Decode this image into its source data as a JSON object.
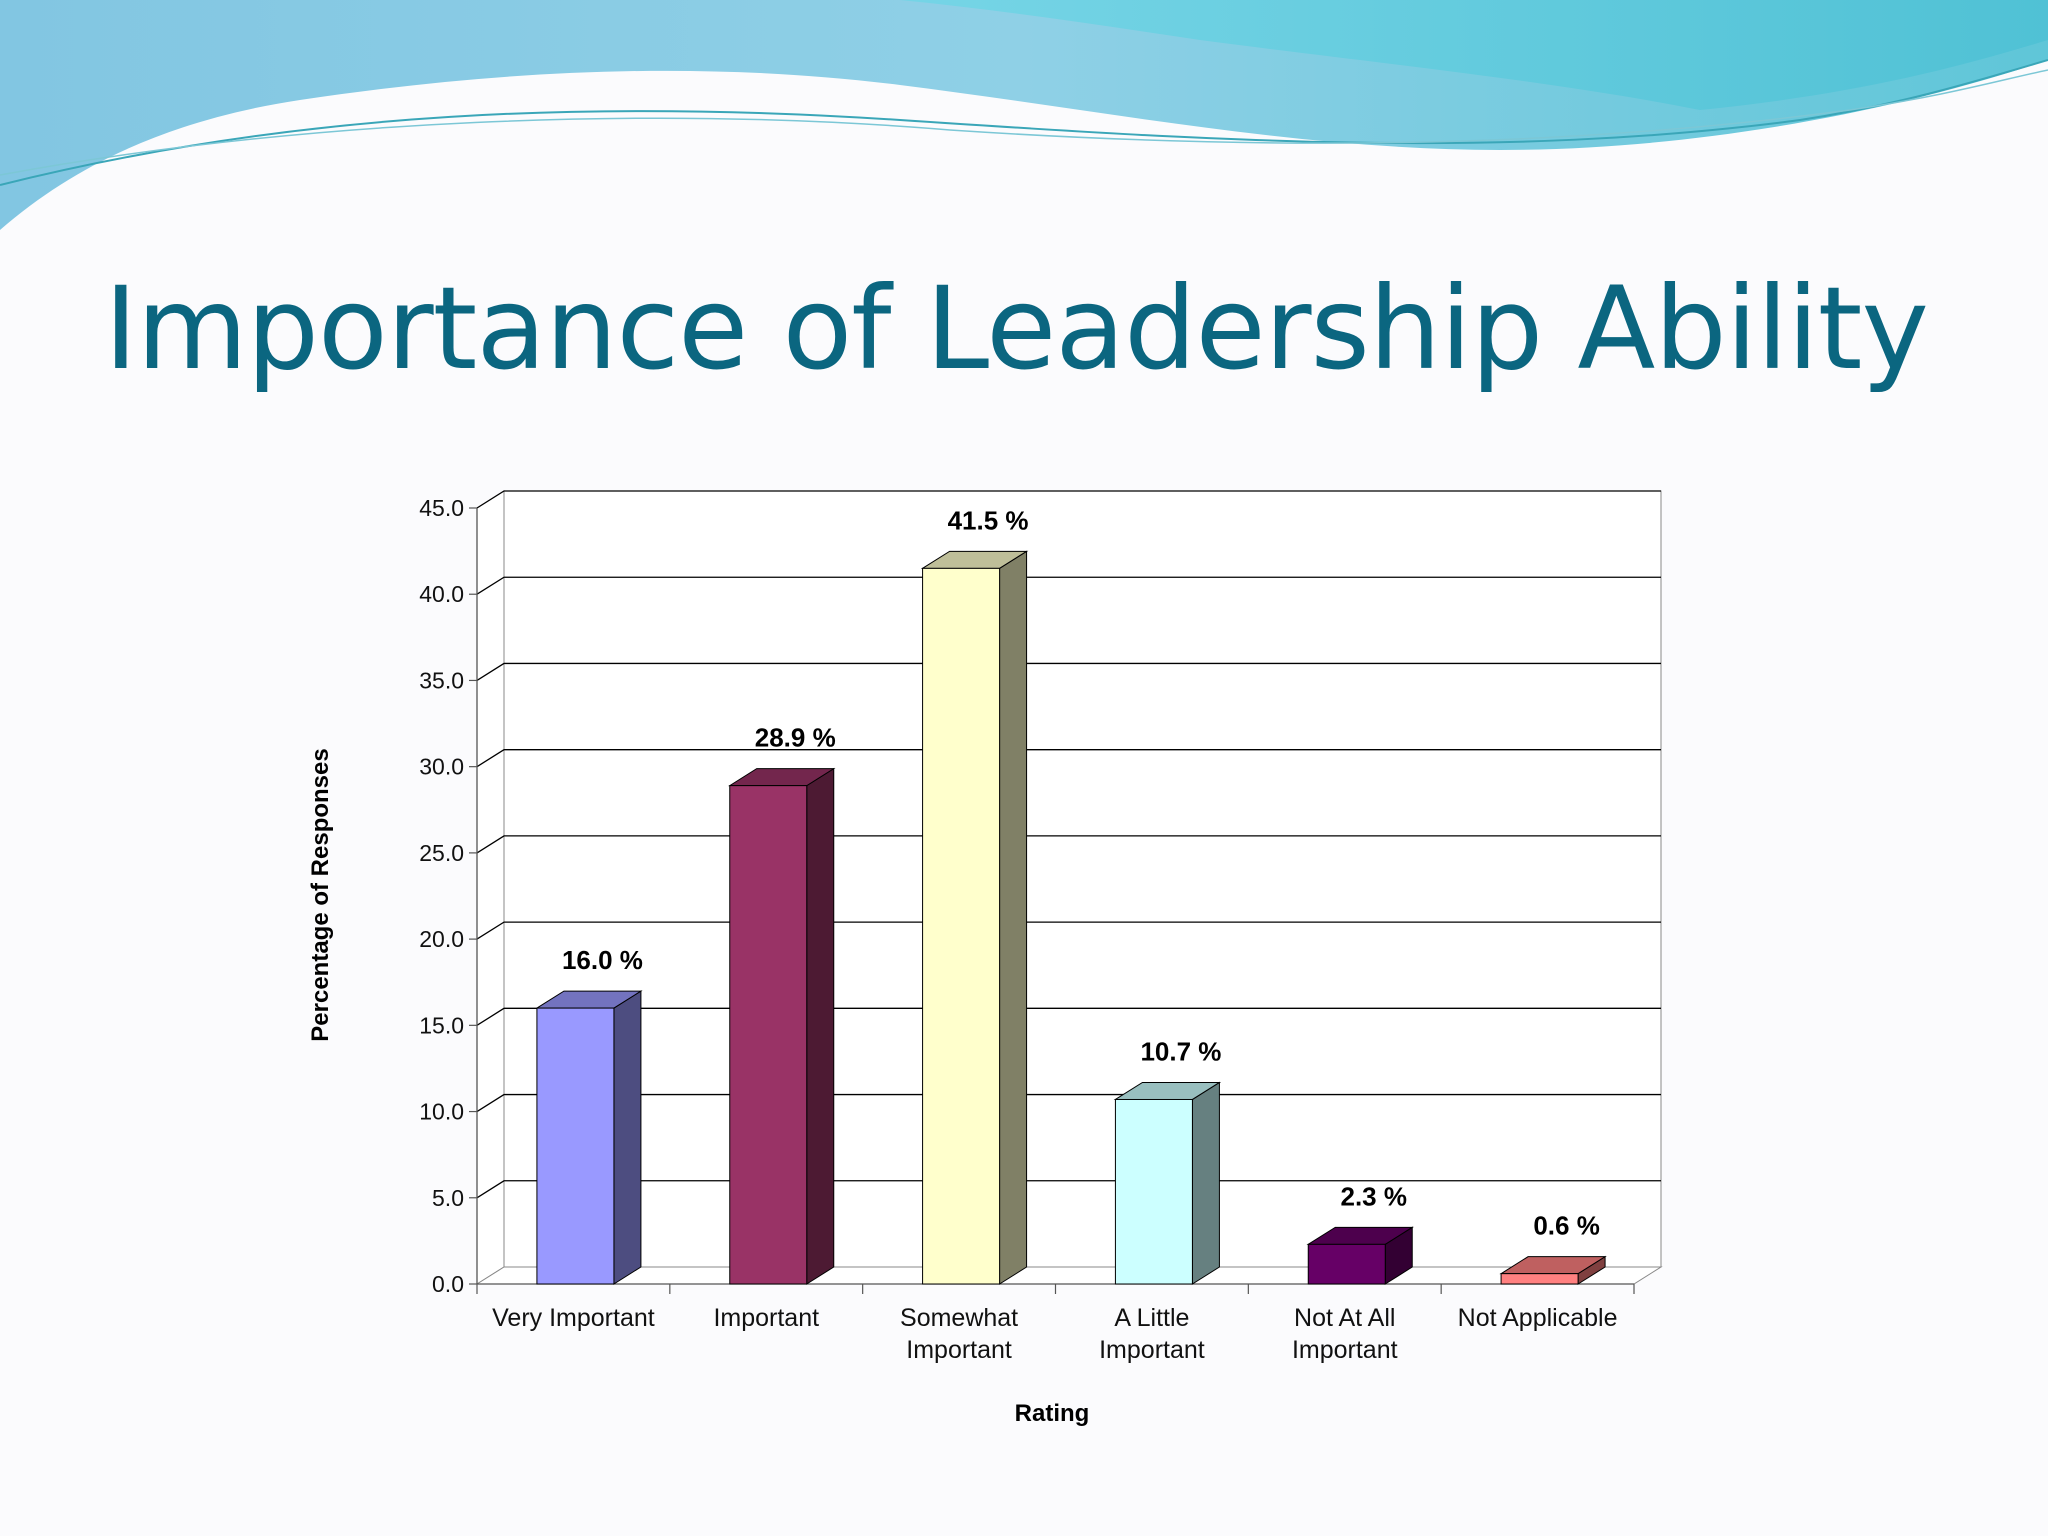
{
  "slide": {
    "title": "Importance of Leadership Ability",
    "title_color": "#0b6680"
  },
  "chart_data": {
    "type": "bar",
    "title": "",
    "xlabel": "Rating",
    "ylabel": "Percentage of Responses",
    "categories": [
      [
        "Very Important"
      ],
      [
        "Important"
      ],
      [
        "Somewhat",
        "Important"
      ],
      [
        "A Little",
        "Important"
      ],
      [
        "Not At All",
        "Important"
      ],
      [
        "Not Applicable"
      ]
    ],
    "values": [
      16.0,
      28.9,
      41.5,
      10.7,
      2.3,
      0.6
    ],
    "data_labels": [
      "16.0 %",
      "28.9 %",
      "41.5 %",
      "10.7 %",
      "2.3 %",
      "0.6 %"
    ],
    "ylim": [
      0,
      45
    ],
    "yticks": [
      "0.0",
      "5.0",
      "10.0",
      "15.0",
      "20.0",
      "25.0",
      "30.0",
      "35.0",
      "40.0",
      "45.0"
    ],
    "bar_colors": [
      "#9999ff",
      "#993366",
      "#ffffcc",
      "#ccffff",
      "#660066",
      "#ff8080"
    ],
    "grid": true,
    "style": "3d-column",
    "legend": "none"
  }
}
